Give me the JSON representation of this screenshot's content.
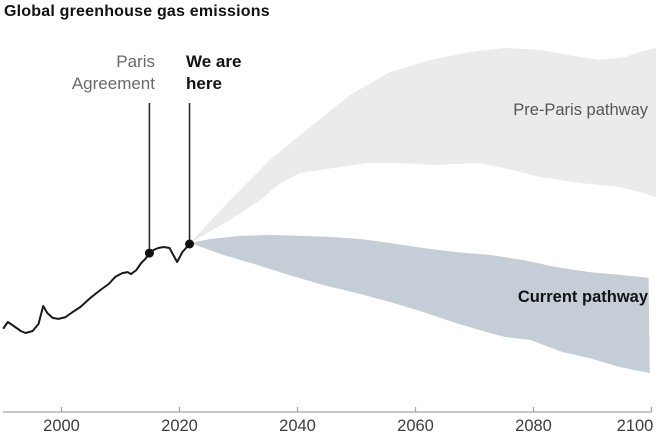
{
  "title": "Global greenhouse gas emissions",
  "annotations": {
    "paris_label": "Paris\nAgreement",
    "we_are_here_label": "We are\nhere",
    "pre_paris_band_label": "Pre-Paris pathway",
    "current_band_label": "Current pathway"
  },
  "colors": {
    "background": "#ffffff",
    "pre_paris_band": "#ebebeb",
    "current_band": "#c5cdd6",
    "history_line": "#1a1a1a",
    "marker_dot": "#111111",
    "marker_line": "#2b2b2b",
    "axis": "#a6a6a6",
    "tick_label": "#3d3d3d",
    "paris_label_text": "#6a6a6a",
    "pre_paris_label_text": "#565656",
    "dark_text": "#121212"
  },
  "chart_data": {
    "type": "area",
    "title": "Global greenhouse gas emissions",
    "xlabel": "",
    "ylabel": "",
    "values_unit": "relative greenhouse gas emissions, indexed so the 2021 'We are here' point = 100 (no numeric y-axis is shown in the chart)",
    "xlim": [
      1990,
      2101
    ],
    "ylim": [
      0,
      245
    ],
    "x_ticks": [
      2000,
      2020,
      2040,
      2060,
      2080,
      2100
    ],
    "grid": false,
    "legend_position": "labels drawn directly on bands",
    "series": [
      {
        "name": "Historical emissions",
        "points": [
          [
            1990.2,
            50.0
          ],
          [
            1990.9,
            53.6
          ],
          [
            1991.9,
            51.2
          ],
          [
            1993.1,
            48.2
          ],
          [
            1993.9,
            47.0
          ],
          [
            1995.1,
            48.2
          ],
          [
            1996.1,
            52.4
          ],
          [
            1996.9,
            63.1
          ],
          [
            1997.6,
            58.9
          ],
          [
            1998.5,
            56.0
          ],
          [
            1999.5,
            55.4
          ],
          [
            2000.7,
            56.5
          ],
          [
            2001.9,
            59.5
          ],
          [
            2003.2,
            62.5
          ],
          [
            2004.9,
            67.9
          ],
          [
            2006.6,
            72.6
          ],
          [
            2008.0,
            76.2
          ],
          [
            2009.1,
            80.4
          ],
          [
            2010.3,
            82.7
          ],
          [
            2011.2,
            83.3
          ],
          [
            2011.8,
            82.1
          ],
          [
            2012.7,
            84.5
          ],
          [
            2013.5,
            88.7
          ],
          [
            2014.2,
            91.1
          ],
          [
            2014.9,
            94.6
          ],
          [
            2015.6,
            96.4
          ],
          [
            2016.4,
            97.6
          ],
          [
            2017.3,
            98.2
          ],
          [
            2018.3,
            97.6
          ],
          [
            2019.6,
            89.3
          ],
          [
            2020.5,
            95.2
          ],
          [
            2021.7,
            100.0
          ]
        ]
      }
    ],
    "bands": [
      {
        "name": "Pre-Paris pathway",
        "color_key": "pre_paris_band",
        "upper": [
          [
            2021.8,
            100.6
          ],
          [
            2028.6,
            126.2
          ],
          [
            2035.3,
            150.0
          ],
          [
            2042.1,
            169.6
          ],
          [
            2048.9,
            188.7
          ],
          [
            2055.7,
            202.4
          ],
          [
            2062.5,
            209.5
          ],
          [
            2069.2,
            214.3
          ],
          [
            2075.2,
            216.7
          ],
          [
            2081.1,
            215.5
          ],
          [
            2087.9,
            211.3
          ],
          [
            2091.3,
            209.5
          ],
          [
            2095.5,
            211.3
          ],
          [
            2098.0,
            214.3
          ],
          [
            2100.8,
            216.7
          ]
        ],
        "lower": [
          [
            2021.8,
            100.6
          ],
          [
            2029.1,
            115.5
          ],
          [
            2033.7,
            126.2
          ],
          [
            2036.7,
            135.1
          ],
          [
            2040.4,
            142.3
          ],
          [
            2046.0,
            145.2
          ],
          [
            2051.8,
            148.2
          ],
          [
            2057.4,
            148.2
          ],
          [
            2062.9,
            147.0
          ],
          [
            2066.7,
            147.6
          ],
          [
            2070.9,
            148.2
          ],
          [
            2074.3,
            145.8
          ],
          [
            2077.7,
            142.9
          ],
          [
            2081.1,
            139.9
          ],
          [
            2084.4,
            138.1
          ],
          [
            2087.9,
            136.3
          ],
          [
            2091.3,
            135.1
          ],
          [
            2094.6,
            133.9
          ],
          [
            2098.0,
            131.0
          ],
          [
            2100.8,
            128.0
          ]
        ]
      },
      {
        "name": "Current pathway",
        "color_key": "current_band",
        "upper": [
          [
            2021.8,
            100.6
          ],
          [
            2025.2,
            103.0
          ],
          [
            2030.3,
            104.8
          ],
          [
            2035.4,
            105.4
          ],
          [
            2040.4,
            104.8
          ],
          [
            2045.5,
            104.2
          ],
          [
            2050.6,
            103.0
          ],
          [
            2055.7,
            100.6
          ],
          [
            2061.3,
            97.6
          ],
          [
            2066.8,
            95.2
          ],
          [
            2072.6,
            93.5
          ],
          [
            2078.2,
            90.5
          ],
          [
            2083.8,
            86.3
          ],
          [
            2089.5,
            83.3
          ],
          [
            2095.1,
            81.5
          ],
          [
            2099.5,
            79.8
          ]
        ],
        "lower": [
          [
            2021.8,
            100.6
          ],
          [
            2027.4,
            93.5
          ],
          [
            2033.2,
            87.5
          ],
          [
            2038.7,
            81.5
          ],
          [
            2044.3,
            75.6
          ],
          [
            2050.1,
            70.8
          ],
          [
            2055.7,
            65.5
          ],
          [
            2061.3,
            59.5
          ],
          [
            2066.8,
            53.0
          ],
          [
            2072.6,
            47.0
          ],
          [
            2075.3,
            44.6
          ],
          [
            2079.4,
            42.9
          ],
          [
            2084.9,
            35.7
          ],
          [
            2089.5,
            32.1
          ],
          [
            2094.6,
            26.8
          ],
          [
            2099.7,
            23.2
          ]
        ]
      }
    ],
    "markers": [
      {
        "name": "Paris Agreement",
        "year": 2014.9,
        "value": 94.6
      },
      {
        "name": "We are here",
        "year": 2021.7,
        "value": 100.0
      }
    ]
  }
}
